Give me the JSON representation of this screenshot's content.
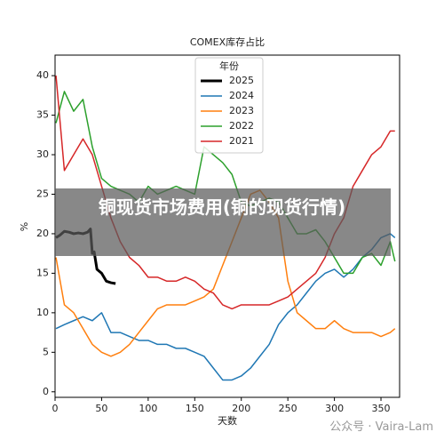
{
  "chart_data": {
    "type": "line",
    "title": "COMEX库存占比",
    "xlabel": "天数",
    "ylabel": "%",
    "xlim": [
      0,
      370
    ],
    "ylim": [
      -0.7,
      42.6
    ],
    "xticks": [
      0,
      50,
      100,
      150,
      200,
      250,
      300,
      350
    ],
    "yticks": [
      0,
      5,
      10,
      15,
      20,
      25,
      30,
      35,
      40
    ],
    "legend_title": "年份",
    "legend_position": "upper center",
    "x": [
      1,
      10,
      20,
      30,
      40,
      50,
      60,
      70,
      80,
      90,
      100,
      110,
      120,
      130,
      140,
      150,
      160,
      170,
      180,
      190,
      200,
      210,
      220,
      230,
      240,
      250,
      260,
      270,
      280,
      290,
      300,
      310,
      320,
      330,
      340,
      350,
      360,
      365
    ],
    "series": [
      {
        "name": "2025",
        "color": "#000000",
        "width": 3,
        "x": [
          1,
          5,
          10,
          15,
          20,
          25,
          30,
          35,
          38,
          40,
          42,
          45,
          50,
          55,
          60,
          65
        ],
        "values": [
          19.5,
          19.8,
          20.3,
          20.2,
          20,
          20.1,
          20,
          20.2,
          20.6,
          17.5,
          17.7,
          15.5,
          15,
          14,
          13.8,
          13.7
        ]
      },
      {
        "name": "2024",
        "color": "#1f77b4",
        "width": 1.5,
        "values": [
          8,
          8.5,
          9,
          9.5,
          9,
          10,
          7.5,
          7.5,
          7,
          6.5,
          6.5,
          6,
          6,
          5.5,
          5.5,
          5,
          4.5,
          3,
          1.5,
          1.5,
          2,
          3,
          4.5,
          6,
          8.5,
          10,
          11,
          12.5,
          14,
          15,
          15.5,
          14.5,
          15.5,
          17,
          18,
          19.5,
          20,
          19.5
        ]
      },
      {
        "name": "2023",
        "color": "#ff7f0e",
        "width": 1.5,
        "values": [
          17,
          11,
          10,
          8,
          6,
          5,
          4.5,
          5,
          6,
          7.5,
          9,
          10.5,
          11,
          11,
          11,
          11.5,
          12,
          13,
          16,
          19,
          22,
          25,
          25.5,
          24,
          22,
          14,
          10,
          9,
          8,
          8,
          9,
          8,
          7.5,
          7.5,
          7.5,
          7,
          7.5,
          8
        ]
      },
      {
        "name": "2022",
        "color": "#2ca02c",
        "width": 1.5,
        "values": [
          34,
          38,
          35.5,
          37,
          31,
          27,
          26,
          25.5,
          25,
          24,
          26,
          25,
          25.5,
          26,
          25.5,
          25,
          31,
          30,
          29,
          27.5,
          24,
          23.5,
          24,
          24.5,
          24,
          22,
          20,
          20,
          20.5,
          19,
          17,
          15,
          15,
          17,
          17.5,
          16,
          19,
          16.5
        ]
      },
      {
        "name": "2021",
        "color": "#d62728",
        "width": 1.5,
        "values": [
          40,
          28,
          30,
          32,
          30,
          26,
          22,
          19,
          17,
          16,
          14.5,
          14.5,
          14,
          14,
          14.5,
          14,
          13,
          12.5,
          11,
          10.5,
          11,
          11,
          11,
          11,
          11.5,
          12,
          13,
          14,
          15,
          17,
          20,
          22,
          26,
          28,
          30,
          31,
          33,
          33
        ]
      }
    ]
  },
  "overlay": {
    "title": "铜现货市场费用(铜的现货行情)",
    "watermark": "公众号 · Vaira-Lam"
  }
}
